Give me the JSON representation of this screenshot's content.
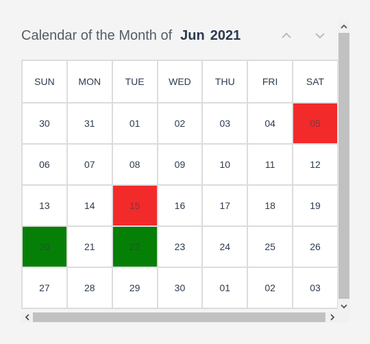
{
  "header": {
    "label": "Calendar of the Month of",
    "month": "Jun",
    "year": "2021"
  },
  "weekdays": [
    "SUN",
    "MON",
    "TUE",
    "WED",
    "THU",
    "FRI",
    "SAT"
  ],
  "weeks": [
    [
      "30",
      "31",
      "01",
      "02",
      "03",
      "04",
      "05"
    ],
    [
      "06",
      "07",
      "08",
      "09",
      "10",
      "11",
      "12"
    ],
    [
      "13",
      "14",
      "15",
      "16",
      "17",
      "18",
      "19"
    ],
    [
      "20",
      "21",
      "22",
      "23",
      "24",
      "25",
      "26"
    ],
    [
      "27",
      "28",
      "29",
      "30",
      "01",
      "02",
      "03"
    ]
  ],
  "highlights": {
    "red": "#f32a2a",
    "green": "#067f06",
    "red_cells": [
      [
        0,
        6
      ],
      [
        2,
        2
      ]
    ],
    "green_cells": [
      [
        3,
        0
      ],
      [
        3,
        2
      ]
    ]
  },
  "icons": {
    "prev": "chevron-up-icon",
    "next": "chevron-down-icon"
  }
}
